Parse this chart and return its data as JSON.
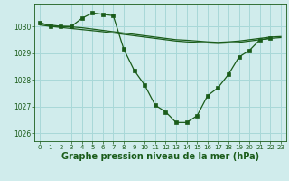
{
  "background_color": "#d0ecec",
  "grid_color": "#a8d8d8",
  "line_color": "#1a5c1a",
  "marker_color": "#1a5c1a",
  "xlabel": "Graphe pression niveau de la mer (hPa)",
  "xlabel_fontsize": 7.0,
  "ylabel_values": [
    1026,
    1027,
    1028,
    1029,
    1030
  ],
  "xlim": [
    -0.5,
    23.5
  ],
  "ylim": [
    1025.7,
    1030.85
  ],
  "figsize": [
    3.2,
    2.0
  ],
  "dpi": 100,
  "series": [
    {
      "x": [
        0,
        1,
        2,
        3,
        4,
        5,
        6,
        7,
        8,
        9,
        10,
        11,
        12,
        13,
        14,
        15,
        16,
        17,
        18,
        19,
        20,
        21,
        22
      ],
      "y": [
        1030.15,
        1030.0,
        1030.0,
        1030.0,
        1030.3,
        1030.5,
        1030.45,
        1030.4,
        1029.15,
        1028.35,
        1027.8,
        1027.05,
        1026.8,
        1026.4,
        1026.4,
        1026.65,
        1027.4,
        1027.7,
        1028.2,
        1028.85,
        1029.1,
        1029.5,
        1029.55
      ],
      "has_markers": true
    },
    {
      "x": [
        0,
        1,
        2,
        3,
        4,
        5,
        6,
        7,
        8,
        9,
        10,
        11,
        12,
        13,
        14,
        15,
        16,
        17,
        18,
        19,
        20,
        21,
        22,
        23
      ],
      "y": [
        1030.1,
        1030.05,
        1030.0,
        1029.98,
        1029.95,
        1029.9,
        1029.85,
        1029.8,
        1029.75,
        1029.7,
        1029.65,
        1029.6,
        1029.55,
        1029.5,
        1029.48,
        1029.45,
        1029.42,
        1029.4,
        1029.42,
        1029.45,
        1029.5,
        1029.55,
        1029.6,
        1029.62
      ],
      "has_markers": false
    },
    {
      "x": [
        0,
        1,
        2,
        3,
        4,
        5,
        6,
        7,
        8,
        9,
        10,
        11,
        12,
        13,
        14,
        15,
        16,
        17,
        18,
        19,
        20,
        21,
        22,
        23
      ],
      "y": [
        1030.05,
        1030.0,
        1029.96,
        1029.92,
        1029.88,
        1029.84,
        1029.8,
        1029.75,
        1029.7,
        1029.65,
        1029.6,
        1029.55,
        1029.5,
        1029.45,
        1029.42,
        1029.4,
        1029.38,
        1029.36,
        1029.38,
        1029.4,
        1029.45,
        1029.5,
        1029.55,
        1029.58
      ],
      "has_markers": false
    }
  ]
}
